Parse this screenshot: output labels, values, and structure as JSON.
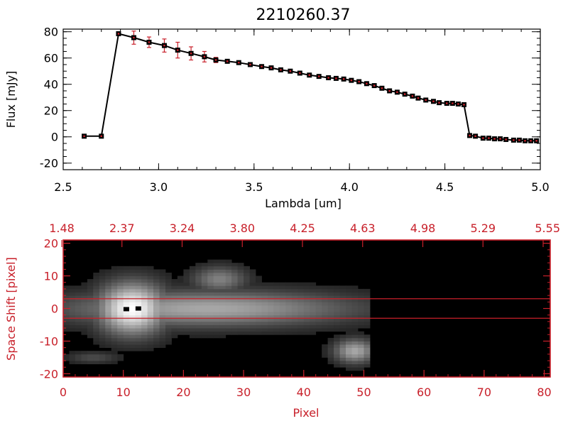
{
  "chart_data": [
    {
      "type": "line",
      "title": "2210260.37",
      "xlabel": "Lambda [um]",
      "ylabel": "Flux [mJy]",
      "xlim": [
        2.5,
        5.0
      ],
      "ylim": [
        -25,
        82
      ],
      "xticks": [
        "2.5",
        "3.0",
        "3.5",
        "4.0",
        "4.5",
        "5.0"
      ],
      "yticks": [
        "-20",
        "0",
        "20",
        "40",
        "60",
        "80"
      ],
      "x": [
        2.61,
        2.7,
        2.79,
        2.87,
        2.95,
        3.03,
        3.1,
        3.17,
        3.24,
        3.3,
        3.36,
        3.42,
        3.48,
        3.54,
        3.59,
        3.64,
        3.69,
        3.74,
        3.79,
        3.84,
        3.89,
        3.93,
        3.97,
        4.01,
        4.05,
        4.09,
        4.13,
        4.17,
        4.21,
        4.25,
        4.29,
        4.33,
        4.36,
        4.4,
        4.44,
        4.47,
        4.51,
        4.54,
        4.57,
        4.6,
        4.63,
        4.66,
        4.7,
        4.73,
        4.76,
        4.79,
        4.82,
        4.86,
        4.89,
        4.92,
        4.95,
        4.98
      ],
      "y": [
        0.5,
        0.5,
        78.5,
        75.5,
        72.0,
        69.5,
        66.0,
        63.5,
        61.0,
        58.5,
        57.5,
        56.5,
        55.0,
        53.5,
        52.5,
        51.0,
        50.0,
        48.5,
        47.0,
        46.0,
        45.0,
        44.5,
        44.0,
        43.0,
        42.0,
        40.5,
        39.0,
        37.0,
        35.0,
        34.0,
        32.5,
        31.0,
        29.5,
        28.0,
        27.0,
        26.0,
        25.5,
        25.5,
        25.0,
        24.5,
        1.0,
        0.5,
        -1.0,
        -1.0,
        -1.5,
        -1.5,
        -2.0,
        -2.5,
        -2.5,
        -3.0,
        -3.0,
        -3.0
      ],
      "yerr": [
        0,
        0,
        1.5,
        5.0,
        4.0,
        5.0,
        6.0,
        5.0,
        4.0,
        2.0,
        0.5,
        0.5,
        0.5,
        0.5,
        0.5,
        0.5,
        0.5,
        0.5,
        0.5,
        0.5,
        0.5,
        0.5,
        0.5,
        0.5,
        0.5,
        0.5,
        0.5,
        0.5,
        0.5,
        0.5,
        0.5,
        0.5,
        0.5,
        0.5,
        0.5,
        0.5,
        0.5,
        0.5,
        0.5,
        0.5,
        0.5,
        0.5,
        0.5,
        0.5,
        0.5,
        0.5,
        0.5,
        0.5,
        0.5,
        0.5,
        0.5,
        0.5
      ],
      "line_color": "#000000",
      "marker_color": "#000000",
      "error_color": "#c8202a"
    },
    {
      "type": "heatmap",
      "xlabel": "Pixel",
      "ylabel": "Space Shift [pixel]",
      "xlim": [
        0,
        81
      ],
      "ylim": [
        -21,
        21
      ],
      "xticks": [
        "0",
        "10",
        "20",
        "30",
        "40",
        "50",
        "60",
        "70",
        "80"
      ],
      "yticks": [
        "-20",
        "-10",
        "0",
        "10",
        "20"
      ],
      "top_ticks": [
        "1.48",
        "2.37",
        "3.24",
        "3.80",
        "4.25",
        "4.63",
        "4.98",
        "5.29",
        "5.55"
      ],
      "hlines": [
        3,
        -3
      ],
      "axis_color": "#c8202a",
      "background_color": "#000000",
      "sources": [
        {
          "x": 11.5,
          "y": 0,
          "sigma_x": 4.0,
          "sigma_y": 5.5,
          "peak": 1.0
        },
        {
          "x": 24,
          "y": 0,
          "sigma_x": 17,
          "sigma_y": 3.8,
          "peak": 0.62
        },
        {
          "x": 26,
          "y": 9,
          "sigma_x": 3.2,
          "sigma_y": 2.8,
          "peak": 0.45
        },
        {
          "x": 48.5,
          "y": -13,
          "sigma_x": 2.4,
          "sigma_y": 2.6,
          "peak": 0.62
        },
        {
          "x": 5,
          "y": -15,
          "sigma_x": 3.0,
          "sigma_y": 1.2,
          "peak": 0.22
        }
      ],
      "data_xmax": 51,
      "dark_marks": [
        {
          "x": 10.5,
          "y": -0.2
        },
        {
          "x": 12.5,
          "y": 0
        }
      ]
    }
  ]
}
